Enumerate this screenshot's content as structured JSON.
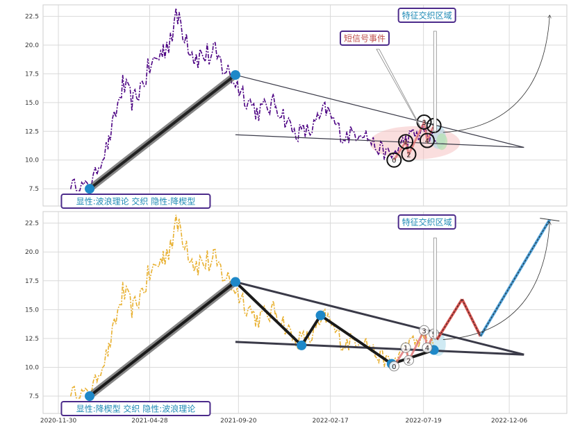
{
  "chart_data": [
    {
      "type": "line",
      "panel": "top",
      "price_color": "#4b0082",
      "x_ticks": [],
      "y_ticks": [
        "7.5",
        "10.0",
        "12.5",
        "15.0",
        "17.5",
        "20.0",
        "22.5"
      ],
      "ylim": [
        6.0,
        23.5
      ],
      "grid": true,
      "annotations": {
        "feature_zone": "特征交织区域",
        "short_signal": "短信号事件",
        "bottom_label": "显性:波浪理论 交织 隐性:降楔型"
      },
      "wave_points": [
        {
          "x": "2021-01-20",
          "y": 7.5
        },
        {
          "x": "2021-09-15",
          "y": 17.4
        }
      ],
      "trend_upper": [
        {
          "x": "2021-09-15",
          "y": 17.4
        },
        {
          "x": "2022-12-30",
          "y": 11.1
        }
      ],
      "trend_lower": [
        {
          "x": "2021-09-15",
          "y": 12.2
        },
        {
          "x": "2022-12-30",
          "y": 11.1
        }
      ],
      "numbered_points": [
        {
          "label": "0",
          "x": "2022-06-01",
          "y": 10.0
        },
        {
          "label": "1",
          "x": "2022-06-20",
          "y": 11.6
        },
        {
          "label": "2",
          "x": "2022-06-25",
          "y": 10.5
        },
        {
          "label": "3",
          "x": "2022-07-20",
          "y": 13.3
        },
        {
          "label": "4",
          "x": "2022-07-25",
          "y": 11.7
        },
        {
          "label": "5",
          "x": "2022-08-05",
          "y": 13.0
        }
      ]
    },
    {
      "type": "line",
      "panel": "bottom",
      "price_color": "#e8b030",
      "x_ticks": [
        "2020-11-30",
        "2021-04-28",
        "2021-09-20",
        "2022-02-17",
        "2022-07-19",
        "2022-12-06"
      ],
      "y_ticks": [
        "7.5",
        "10.0",
        "12.5",
        "15.0",
        "17.5",
        "20.0",
        "22.5"
      ],
      "ylim": [
        6.0,
        23.5
      ],
      "grid": true,
      "annotations": {
        "feature_zone": "特征交织区域",
        "bottom_label": "显性:降楔型 交织 隐性:波浪理论"
      },
      "wave_points": [
        {
          "x": "2021-01-20",
          "y": 7.5
        },
        {
          "x": "2021-09-15",
          "y": 17.4
        },
        {
          "x": "2022-01-01",
          "y": 11.9
        },
        {
          "x": "2022-02-01",
          "y": 14.5
        },
        {
          "x": "2022-05-28",
          "y": 10.3
        },
        {
          "x": "2022-08-05",
          "y": 11.5
        }
      ],
      "trend_upper": [
        {
          "x": "2021-09-15",
          "y": 17.4
        },
        {
          "x": "2022-12-30",
          "y": 11.1
        }
      ],
      "trend_lower": [
        {
          "x": "2021-09-15",
          "y": 12.2
        },
        {
          "x": "2022-12-30",
          "y": 11.1
        }
      ],
      "projection": [
        {
          "x": "2022-08-10",
          "y": 12.4
        },
        {
          "x": "2022-09-20",
          "y": 15.9
        },
        {
          "x": "2022-10-20",
          "y": 12.7
        },
        {
          "x": "2023-02-10",
          "y": 22.8
        }
      ],
      "numbered_points": [
        {
          "label": "0",
          "x": "2022-06-01",
          "y": 10.1
        },
        {
          "label": "1",
          "x": "2022-06-20",
          "y": 11.7
        },
        {
          "label": "2",
          "x": "2022-06-25",
          "y": 10.6
        },
        {
          "label": "3",
          "x": "2022-07-20",
          "y": 13.2
        },
        {
          "label": "4",
          "x": "2022-07-25",
          "y": 11.7
        },
        {
          "label": "5",
          "x": "2022-08-05",
          "y": 12.9
        }
      ]
    }
  ]
}
